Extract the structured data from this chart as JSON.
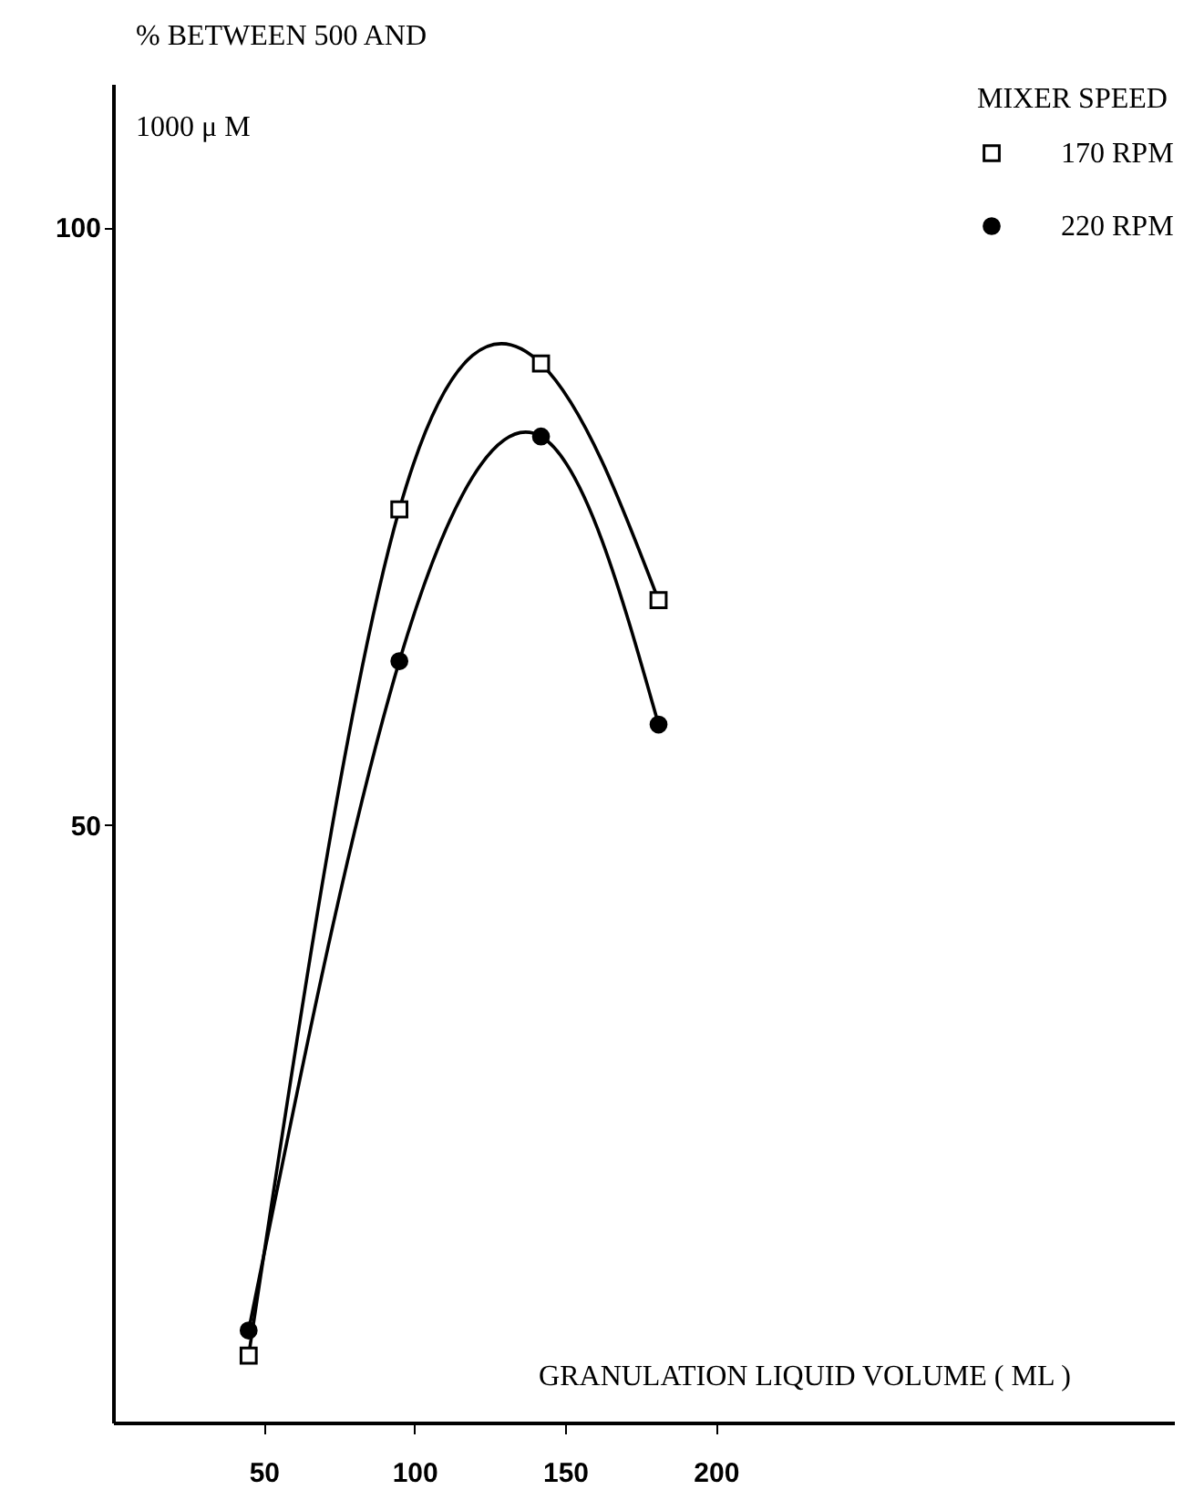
{
  "chart_data": {
    "type": "line",
    "xlabel": "GRANULATION LIQUID VOLUME ( ML )",
    "ylabel": "% BETWEEN 500 AND 1000 μ M",
    "legend_title": "MIXER SPEED",
    "legend": "top right",
    "x": [
      45,
      95,
      142,
      181
    ],
    "xlim": [
      0,
      352
    ],
    "xticks": [
      50,
      100,
      150,
      200
    ],
    "ylim": [
      0,
      112
    ],
    "yticks": [
      50,
      100
    ],
    "grid": false,
    "series": [
      {
        "name": "170 RPM",
        "color": "#000000",
        "marker": "square",
        "values": [
          5.6,
          76.4,
          88.6,
          68.8
        ]
      },
      {
        "name": "220 RPM",
        "color": "#000000",
        "marker": "circle",
        "values": [
          7.7,
          63.7,
          82.5,
          58.4
        ]
      }
    ]
  }
}
